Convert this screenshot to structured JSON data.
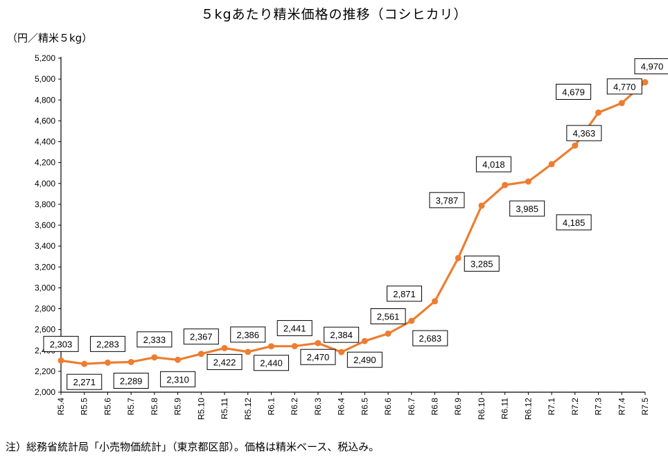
{
  "title": "５kgあたり精米価格の推移（コシヒカリ）",
  "ylabel": "（円／精米５kg）",
  "note": "注）総務省統計局「小売物価統計」（東京都区部）。価格は精米ベース、税込み。",
  "colors": {
    "line": "#ed7d31",
    "axis": "#000000"
  },
  "chart_data": {
    "type": "line",
    "title": "５kgあたり精米価格の推移（コシヒカリ）",
    "xlabel": "",
    "ylabel": "（円／精米５kg）",
    "ylim": [
      2000,
      5200
    ],
    "grid": false,
    "y_ticks": [
      2000,
      2200,
      2400,
      2600,
      2800,
      3000,
      3200,
      3400,
      3600,
      3800,
      4000,
      4200,
      4400,
      4600,
      4800,
      5000,
      5200
    ],
    "y_tick_labels": [
      "2,000",
      "2,200",
      "2,400",
      "2,600",
      "2,800",
      "3,000",
      "3,200",
      "3,400",
      "3,600",
      "3,800",
      "4,000",
      "4,200",
      "4,400",
      "4,600",
      "4,800",
      "5,000",
      "5,200"
    ],
    "categories": [
      "R5.4",
      "R5.5",
      "R5.6",
      "R5.7",
      "R5.8",
      "R5.9",
      "R5.10",
      "R5.11",
      "R5.12",
      "R6.1",
      "R6.2",
      "R6.3",
      "R6.4",
      "R6.5",
      "R6.6",
      "R6.7",
      "R6.8",
      "R6.9",
      "R6.10",
      "R6.11",
      "R6.12",
      "R7.1",
      "R7.2",
      "R7.3",
      "R7.4",
      "R7.5"
    ],
    "series": [
      {
        "name": "",
        "values": [
          2303,
          2271,
          2283,
          2289,
          2333,
          2310,
          2367,
          2422,
          2386,
          2440,
          2441,
          2470,
          2384,
          2490,
          2561,
          2683,
          2871,
          3285,
          3787,
          3985,
          4018,
          4185,
          4363,
          4679,
          4770,
          4970
        ]
      }
    ],
    "data_labels": [
      "2,303",
      "2,271",
      "2,283",
      "2,289",
      "2,333",
      "2,310",
      "2,367",
      "2,422",
      "2,386",
      "2,440",
      "2,441",
      "2,470",
      "2,384",
      "2,490",
      "2,561",
      "2,683",
      "2,871",
      "3,285",
      "3,787",
      "3,985",
      "4,018",
      "4,185",
      "4,363",
      "4,679",
      "4,770",
      "4,970"
    ]
  }
}
